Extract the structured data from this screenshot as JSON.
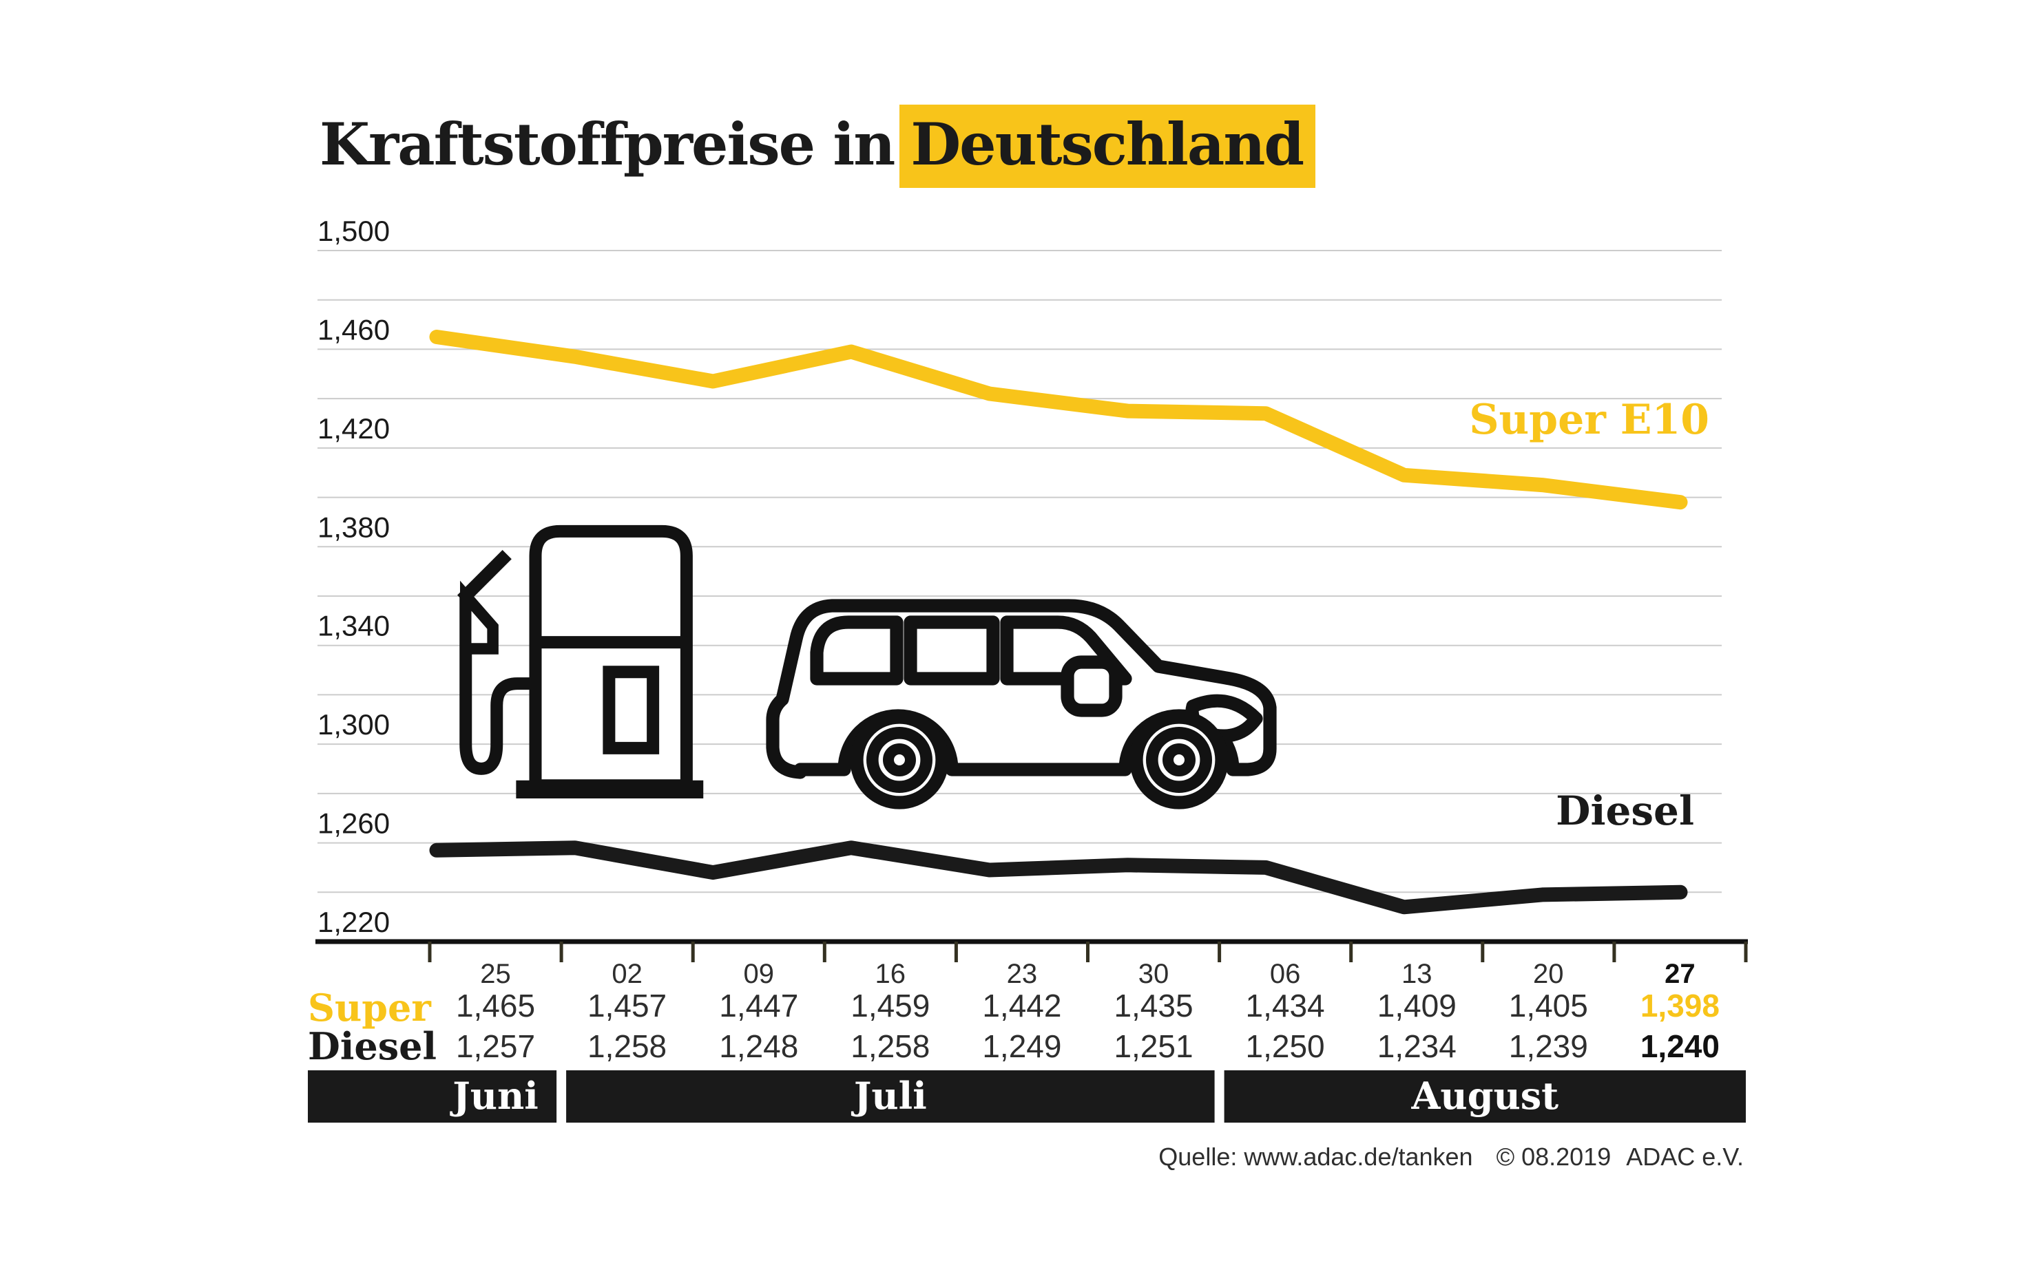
{
  "title": {
    "prefix": "Kraftstoffpreise in",
    "highlight": "Deutschland"
  },
  "source": {
    "label": "Quelle: www.adac.de/tanken",
    "copyright": "© 08.2019",
    "org": "ADAC e.V."
  },
  "colors": {
    "yellow": "#F8C41A",
    "black": "#1A1A1A",
    "grid": "#CCCCCC",
    "tick": "#343121",
    "text_muted": "#2E2E2E",
    "band_bg": "#1A1A1A",
    "band_text": "#FFFFFF"
  },
  "icons": [
    "fuel-pump-icon",
    "car-icon"
  ],
  "chart_data": {
    "type": "line",
    "title": "Kraftstoffpreise in Deutschland",
    "grid": true,
    "y_axis": {
      "min": 1220,
      "max": 1500,
      "gridline_step": 20,
      "label_step": 40
    },
    "y_tick_labels": [
      "1,220",
      "1,260",
      "1,300",
      "1,340",
      "1,380",
      "1,420",
      "1,460",
      "1,500"
    ],
    "x_categories": [
      "25",
      "02",
      "09",
      "16",
      "23",
      "30",
      "06",
      "13",
      "20",
      "27"
    ],
    "month_groups": [
      {
        "label": "Juni",
        "start_col": 0,
        "end_col": 0
      },
      {
        "label": "Juli",
        "start_col": 1,
        "end_col": 5
      },
      {
        "label": "August",
        "start_col": 6,
        "end_col": 9
      }
    ],
    "highlight_last_column": true,
    "legend_position": "inline-right",
    "series": [
      {
        "name": "Super E10",
        "row_label": "Super",
        "color": "#F8C41A",
        "values": [
          1465,
          1457,
          1447,
          1459,
          1442,
          1435,
          1434,
          1409,
          1405,
          1398
        ],
        "display_values": [
          "1,465",
          "1,457",
          "1,447",
          "1,459",
          "1,442",
          "1,435",
          "1,434",
          "1,409",
          "1,405",
          "1,398"
        ]
      },
      {
        "name": "Diesel",
        "row_label": "Diesel",
        "color": "#1A1A1A",
        "values": [
          1257,
          1258,
          1248,
          1258,
          1249,
          1251,
          1250,
          1234,
          1239,
          1240
        ],
        "display_values": [
          "1,257",
          "1,258",
          "1,248",
          "1,258",
          "1,249",
          "1,251",
          "1,250",
          "1,234",
          "1,239",
          "1,240"
        ]
      }
    ]
  }
}
